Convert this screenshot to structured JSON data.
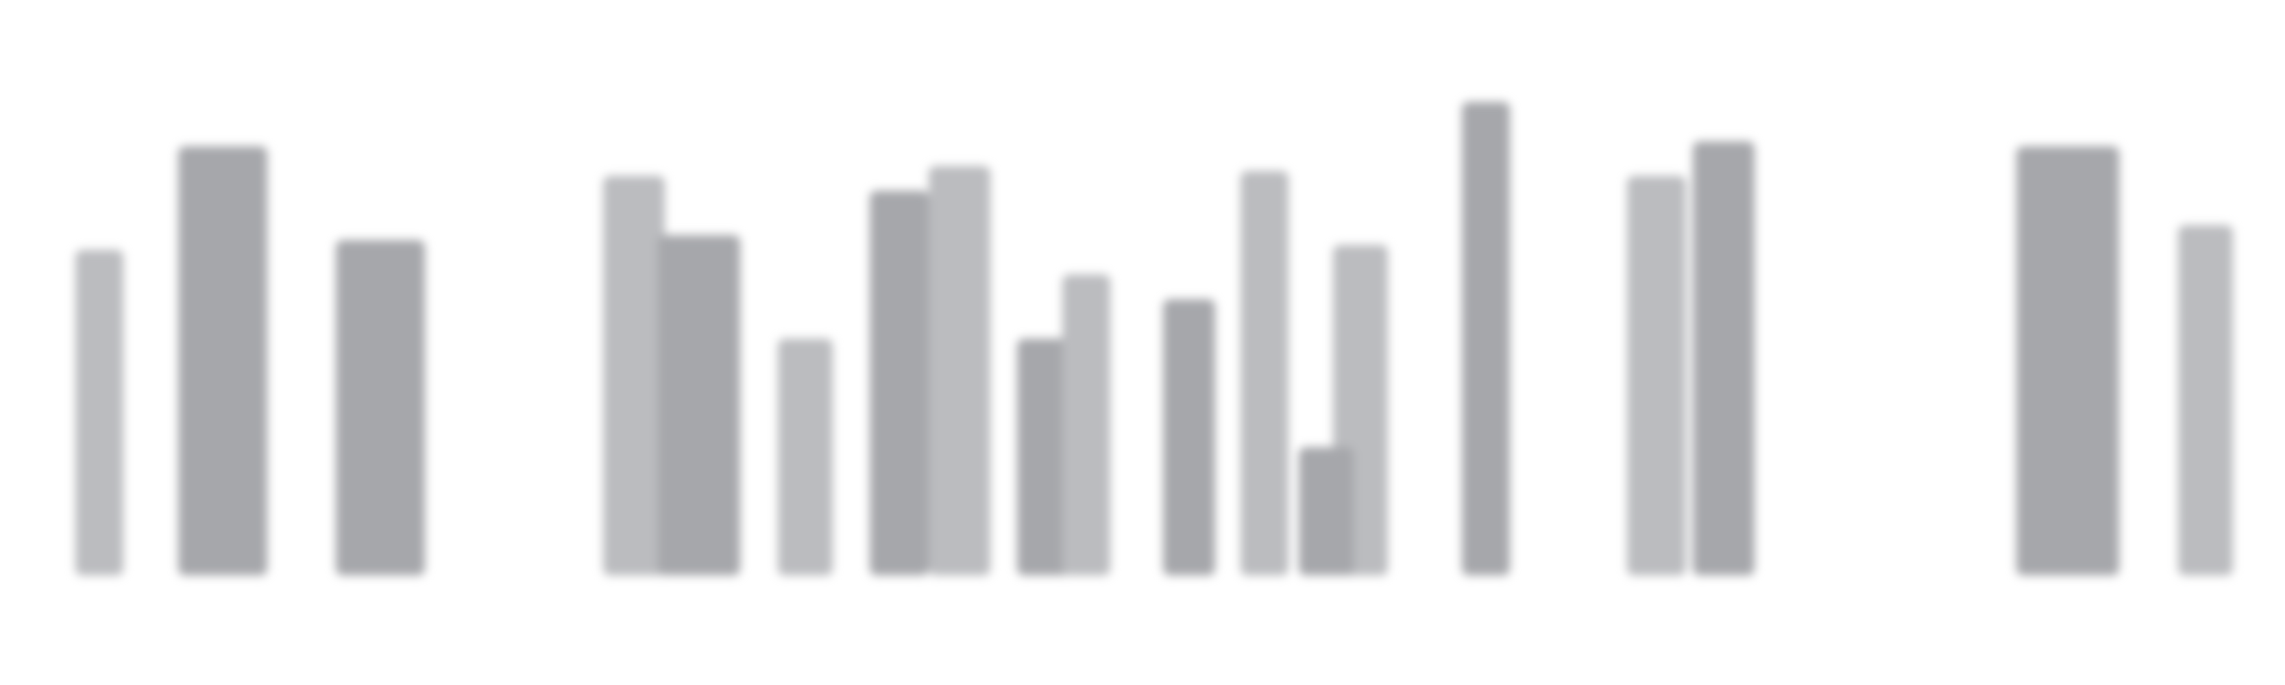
{
  "chart_data": {
    "type": "bar",
    "title": "",
    "xlabel": "",
    "ylabel": "",
    "ylim": [
      0,
      100
    ],
    "grid": false,
    "legend": "none",
    "colors": {
      "light": "#bbbcbf",
      "dark": "#a6a7ab",
      "background": "#ffffff"
    },
    "bars": [
      {
        "x": 145,
        "w": 70,
        "value": 66,
        "shade": "light"
      },
      {
        "x": 325,
        "w": 130,
        "value": 87,
        "shade": "dark"
      },
      {
        "x": 555,
        "w": 130,
        "value": 68,
        "shade": "dark"
      },
      {
        "x": 925,
        "w": 90,
        "value": 81,
        "shade": "light"
      },
      {
        "x": 1020,
        "w": 120,
        "value": 69,
        "shade": "dark"
      },
      {
        "x": 1175,
        "w": 80,
        "value": 48,
        "shade": "light"
      },
      {
        "x": 1312,
        "w": 86,
        "value": 78,
        "shade": "dark"
      },
      {
        "x": 1400,
        "w": 90,
        "value": 83,
        "shade": "light"
      },
      {
        "x": 1522,
        "w": 76,
        "value": 48,
        "shade": "dark"
      },
      {
        "x": 1585,
        "w": 70,
        "value": 61,
        "shade": "light"
      },
      {
        "x": 1735,
        "w": 76,
        "value": 56,
        "shade": "dark"
      },
      {
        "x": 1845,
        "w": 70,
        "value": 82,
        "shade": "light"
      },
      {
        "x": 1985,
        "w": 80,
        "value": 67,
        "shade": "light"
      },
      {
        "x": 1935,
        "w": 80,
        "value": 26,
        "shade": "dark"
      },
      {
        "x": 2168,
        "w": 70,
        "value": 96,
        "shade": "dark"
      },
      {
        "x": 2417,
        "w": 86,
        "value": 81,
        "shade": "light"
      },
      {
        "x": 2515,
        "w": 90,
        "value": 88,
        "shade": "dark"
      },
      {
        "x": 3017,
        "w": 150,
        "value": 87,
        "shade": "dark"
      },
      {
        "x": 3218,
        "w": 80,
        "value": 71,
        "shade": "light"
      }
    ]
  }
}
